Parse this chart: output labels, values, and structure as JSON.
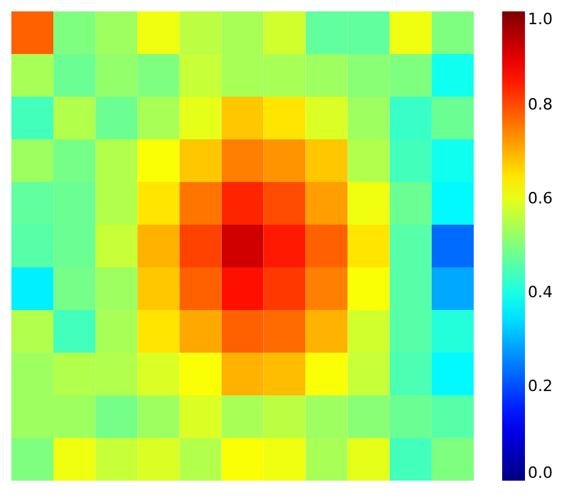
{
  "chart_data": {
    "type": "heatmap",
    "tick_labels": false,
    "categories": [
      null,
      null,
      null,
      null,
      null,
      null,
      null,
      null,
      null,
      null,
      null
    ],
    "y_categories": [
      null,
      null,
      null,
      null,
      null,
      null,
      null,
      null,
      null,
      null,
      null
    ],
    "cells": [
      [
        0.78,
        0.5,
        0.53,
        0.61,
        0.56,
        0.54,
        0.58,
        0.47,
        0.47,
        0.61,
        0.5
      ],
      [
        0.54,
        0.48,
        0.52,
        0.5,
        0.57,
        0.54,
        0.54,
        0.53,
        0.51,
        0.5,
        0.39
      ],
      [
        0.44,
        0.55,
        0.48,
        0.54,
        0.6,
        0.68,
        0.65,
        0.59,
        0.53,
        0.43,
        0.48
      ],
      [
        0.53,
        0.49,
        0.55,
        0.62,
        0.68,
        0.75,
        0.73,
        0.68,
        0.55,
        0.44,
        0.39
      ],
      [
        0.47,
        0.48,
        0.55,
        0.65,
        0.76,
        0.84,
        0.8,
        0.72,
        0.61,
        0.48,
        0.37
      ],
      [
        0.46,
        0.48,
        0.57,
        0.7,
        0.81,
        0.92,
        0.85,
        0.78,
        0.65,
        0.46,
        0.23
      ],
      [
        0.36,
        0.49,
        0.53,
        0.68,
        0.78,
        0.86,
        0.82,
        0.75,
        0.62,
        0.46,
        0.29
      ],
      [
        0.55,
        0.44,
        0.54,
        0.65,
        0.71,
        0.78,
        0.77,
        0.7,
        0.58,
        0.46,
        0.41
      ],
      [
        0.53,
        0.55,
        0.55,
        0.59,
        0.62,
        0.7,
        0.69,
        0.62,
        0.57,
        0.45,
        0.37
      ],
      [
        0.53,
        0.53,
        0.49,
        0.53,
        0.59,
        0.54,
        0.56,
        0.53,
        0.51,
        0.48,
        0.46
      ],
      [
        0.5,
        0.61,
        0.57,
        0.59,
        0.55,
        0.62,
        0.61,
        0.54,
        0.6,
        0.44,
        0.5
      ]
    ],
    "clim": [
      0,
      1
    ],
    "cticks": [
      {
        "value": 0,
        "label": "0.0"
      },
      {
        "value": 0.2,
        "label": "0.2"
      },
      {
        "value": 0.4,
        "label": "0.4"
      },
      {
        "value": 0.6,
        "label": "0.6"
      },
      {
        "value": 0.8,
        "label": "0.8"
      },
      {
        "value": 1,
        "label": "1.0"
      }
    ]
  }
}
